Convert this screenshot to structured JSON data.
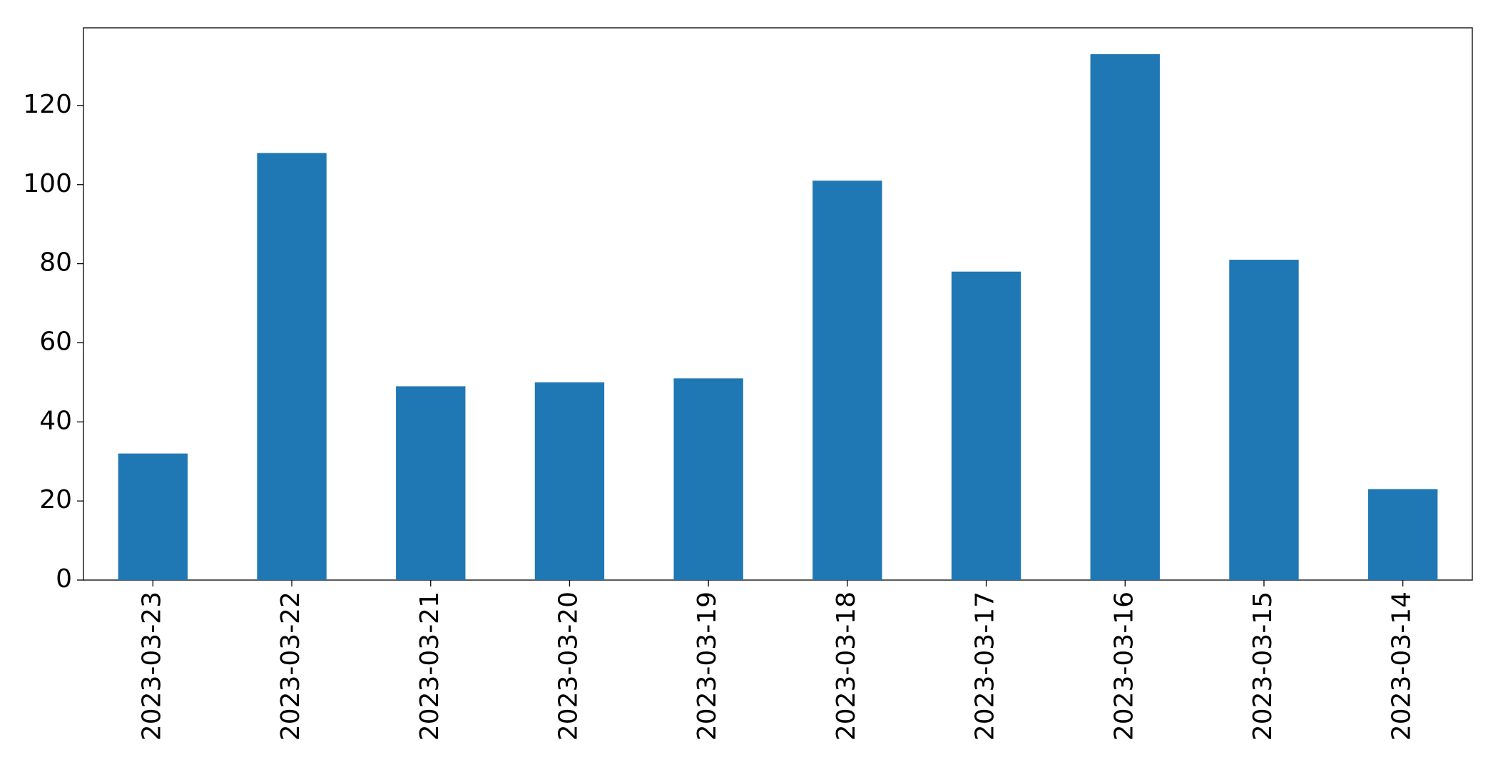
{
  "chart_data": {
    "type": "bar",
    "categories": [
      "2023-03-23",
      "2023-03-22",
      "2023-03-21",
      "2023-03-20",
      "2023-03-19",
      "2023-03-18",
      "2023-03-17",
      "2023-03-16",
      "2023-03-15",
      "2023-03-14"
    ],
    "values": [
      32,
      108,
      49,
      50,
      51,
      101,
      78,
      133,
      81,
      23
    ],
    "color": "#1f77b4",
    "ylim": [
      0,
      139.65
    ],
    "yticks": [
      0,
      20,
      40,
      60,
      80,
      100,
      120
    ],
    "grid": false
  }
}
